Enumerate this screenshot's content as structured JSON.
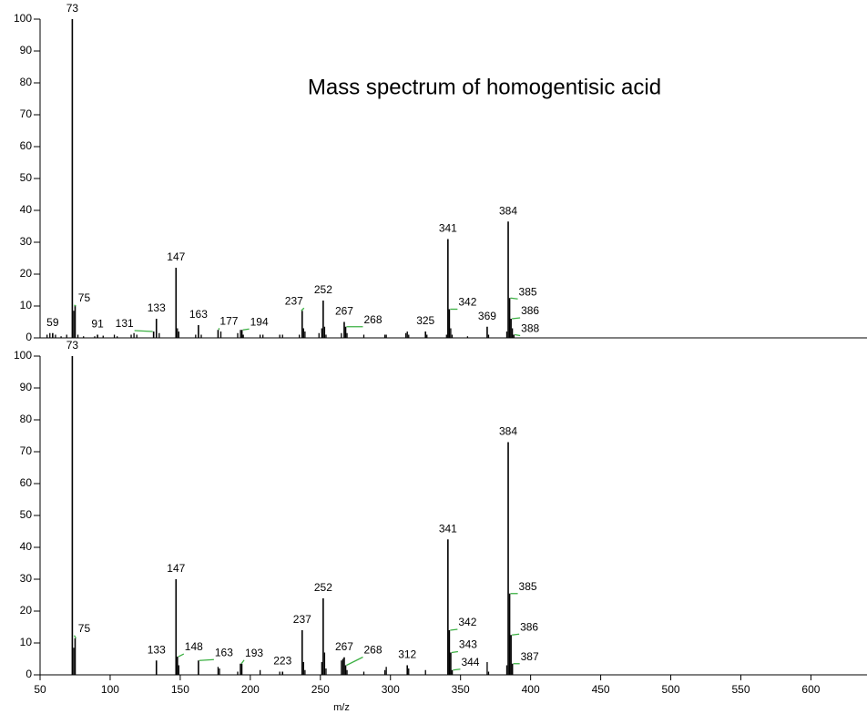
{
  "chart_data": [
    {
      "type": "stem",
      "title": "Mass spectrum of homogentisic acid",
      "color": "#000000",
      "leader_color": "#3cb043",
      "xlim": [
        50,
        640
      ],
      "ylim": [
        0,
        100
      ],
      "yticks": [
        0,
        10,
        20,
        30,
        40,
        50,
        60,
        70,
        80,
        90,
        100
      ],
      "peaks": {
        "x": [
          59,
          73,
          75,
          91,
          131,
          133,
          147,
          163,
          177,
          194,
          237,
          252,
          267,
          268,
          325,
          341,
          342,
          369,
          384,
          385,
          386,
          388
        ],
        "values": [
          1.5,
          100,
          10,
          1,
          2,
          6,
          22,
          4,
          2.5,
          2.5,
          8.5,
          11.7,
          5,
          3.5,
          2,
          31,
          9,
          3.5,
          36.5,
          12.5,
          6,
          1
        ]
      },
      "minor_peaks": {
        "x": [
          55,
          57,
          61,
          65,
          69,
          74,
          77,
          81,
          89,
          95,
          103,
          105,
          115,
          117,
          119,
          135,
          148,
          149,
          161,
          165,
          179,
          191,
          193,
          195,
          207,
          209,
          221,
          223,
          235,
          238,
          239,
          249,
          251,
          253,
          254,
          265,
          269,
          281,
          296,
          297,
          311,
          312,
          313,
          326,
          340,
          343,
          344,
          355,
          370,
          383,
          387
        ],
        "values": [
          1,
          1.5,
          1,
          0.5,
          1,
          8.5,
          1,
          0.5,
          0.5,
          0.7,
          1,
          0.5,
          1,
          1.5,
          1,
          1.5,
          3,
          2,
          1,
          1,
          2,
          1.5,
          2.5,
          1,
          1,
          1,
          1,
          1,
          1,
          3,
          2,
          1.5,
          3,
          3.5,
          1,
          1.5,
          1.5,
          1,
          1,
          1,
          1.5,
          2,
          1,
          1,
          1,
          3,
          1,
          0.5,
          1,
          2,
          3
        ]
      }
    },
    {
      "type": "stem",
      "xlabel": "m/z",
      "color": "#000000",
      "leader_color": "#3cb043",
      "xlim": [
        50,
        640
      ],
      "ylim": [
        0,
        100
      ],
      "yticks": [
        0,
        10,
        20,
        30,
        40,
        50,
        60,
        70,
        80,
        90,
        100
      ],
      "xticks": [
        50,
        100,
        150,
        200,
        250,
        300,
        350,
        400,
        450,
        500,
        550,
        600
      ],
      "peaks": {
        "x": [
          73,
          75,
          133,
          147,
          148,
          163,
          193,
          223,
          237,
          252,
          267,
          268,
          312,
          341,
          342,
          343,
          344,
          384,
          385,
          386,
          387
        ],
        "values": [
          100,
          11.5,
          4.5,
          30,
          5.7,
          4.5,
          3.5,
          1,
          14,
          24,
          5.5,
          3,
          3,
          42.5,
          14,
          7,
          1.5,
          73,
          25.5,
          12.5,
          3.5
        ]
      },
      "minor_peaks": {
        "x": [
          74,
          149,
          177,
          178,
          191,
          194,
          207,
          221,
          238,
          239,
          251,
          253,
          254,
          265,
          266,
          269,
          281,
          296,
          297,
          313,
          325,
          369,
          370,
          383
        ],
        "values": [
          8.5,
          3,
          2.5,
          2,
          1,
          3.5,
          1.5,
          1,
          4,
          1.5,
          4,
          7,
          2,
          4.5,
          5,
          1.5,
          1,
          1.5,
          2.5,
          2,
          1.5,
          4,
          1,
          3
        ]
      }
    }
  ]
}
